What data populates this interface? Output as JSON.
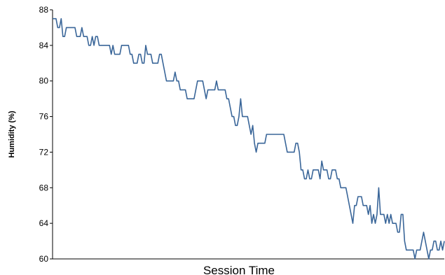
{
  "chart_data": {
    "type": "line",
    "title": "",
    "xlabel": "Session Time",
    "ylabel": "Humidity (%)",
    "ylim": [
      60,
      88
    ],
    "yticks": [
      60,
      64,
      68,
      72,
      76,
      80,
      84,
      88
    ],
    "grid": false,
    "legend": "none",
    "series": [
      {
        "color": "#3a6699",
        "values": [
          87,
          87,
          87,
          86,
          86,
          87,
          85,
          85,
          86,
          86,
          86,
          86,
          86,
          86,
          85,
          85,
          85,
          86,
          85,
          85,
          85,
          84,
          84,
          85,
          84,
          85,
          85,
          84,
          84,
          84,
          84,
          84,
          84,
          84,
          83,
          84,
          83,
          83,
          83,
          83,
          84,
          84,
          84,
          84,
          84,
          83,
          83,
          82,
          82,
          82,
          83,
          83,
          82,
          82,
          84,
          83,
          83,
          83,
          82,
          82,
          82,
          82,
          83,
          83,
          82,
          81,
          80,
          80,
          80,
          80,
          80,
          81,
          80,
          80,
          79,
          79,
          79,
          79,
          78,
          78,
          78,
          78,
          78,
          79,
          80,
          80,
          80,
          80,
          79,
          78,
          79,
          79,
          79,
          79,
          79,
          80,
          79,
          79,
          79,
          79,
          79,
          78,
          78,
          77,
          76,
          76,
          75,
          75,
          76,
          78,
          76,
          76,
          76,
          76,
          75,
          74,
          75,
          73,
          72,
          73,
          73,
          73,
          73,
          73,
          74,
          74,
          74,
          74,
          74,
          74,
          74,
          74,
          74,
          74,
          74,
          73,
          72,
          72,
          72,
          72,
          72,
          73,
          73,
          72,
          70,
          70,
          69,
          69,
          70,
          69,
          69,
          70,
          70,
          70,
          70,
          69,
          71,
          70,
          70,
          70,
          69,
          69,
          70,
          70,
          70,
          69,
          69,
          68,
          68,
          68,
          68,
          67,
          66,
          65,
          64,
          66,
          66,
          67,
          67,
          67,
          66,
          66,
          66,
          65,
          66,
          64,
          65,
          64,
          65,
          68,
          65,
          65,
          65,
          64,
          65,
          64,
          65,
          64,
          64,
          64,
          63,
          63,
          65,
          65,
          62,
          61,
          61,
          61,
          61,
          61,
          60,
          61,
          61,
          61,
          62,
          63,
          62,
          61,
          60,
          61,
          61,
          62,
          62,
          61,
          61,
          62,
          61,
          62
        ]
      }
    ]
  }
}
